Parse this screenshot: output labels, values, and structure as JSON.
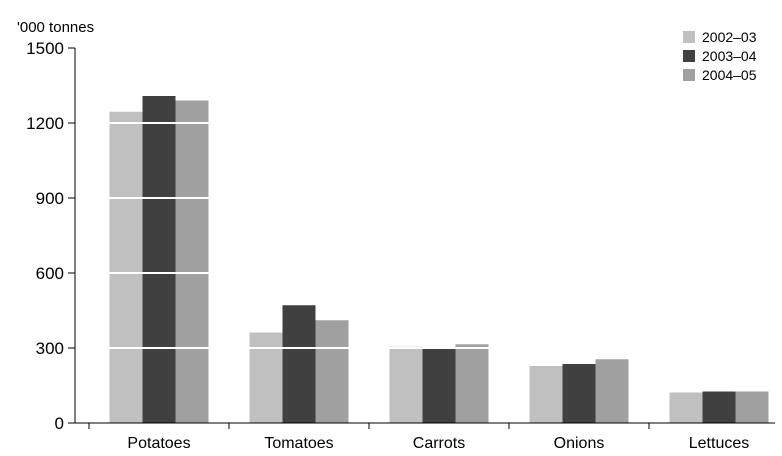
{
  "chart_data": {
    "type": "bar",
    "title": "",
    "xlabel": "",
    "ylabel": "'000 tonnes",
    "ylim": [
      0,
      1500
    ],
    "yticks": [
      0,
      300,
      600,
      900,
      1200,
      1500
    ],
    "categories": [
      "Potatoes",
      "Tomatoes",
      "Carrots",
      "Onions",
      "Lettuces"
    ],
    "series": [
      {
        "name": "2002–03",
        "color": "#c0c0c0",
        "values": [
          1245,
          362,
          305,
          228,
          122
        ]
      },
      {
        "name": "2003–04",
        "color": "#404040",
        "values": [
          1308,
          471,
          297,
          236,
          126
        ]
      },
      {
        "name": "2004–05",
        "color": "#a0a0a0",
        "values": [
          1290,
          411,
          315,
          255,
          126
        ]
      }
    ],
    "grid": {
      "horizontal": true,
      "color": "#ffffff",
      "drawn_over_bars": true
    },
    "legend_position": "top-right"
  }
}
